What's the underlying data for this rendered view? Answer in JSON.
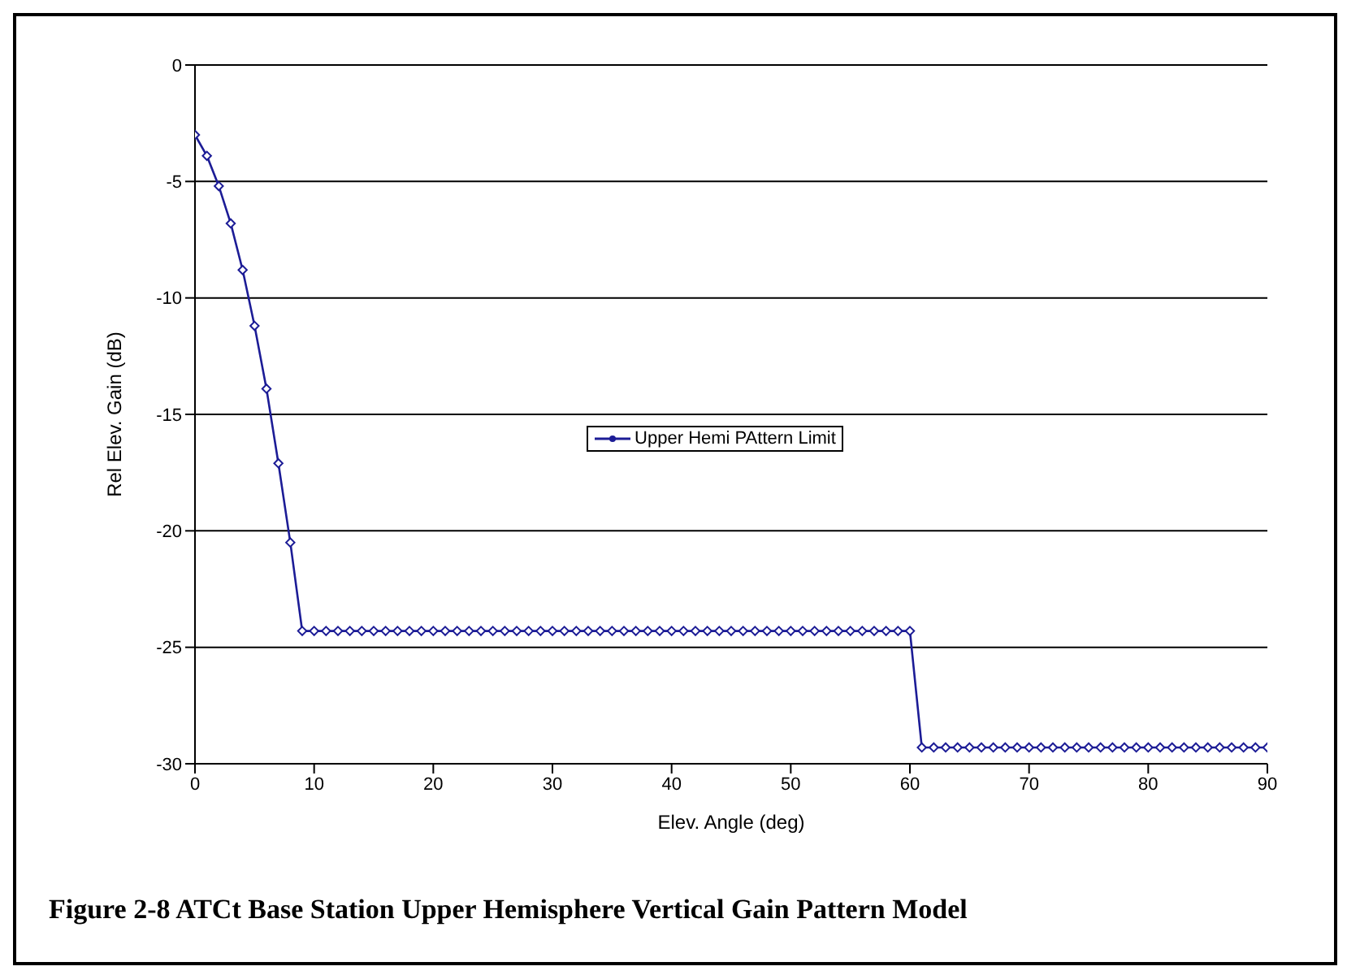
{
  "chart_data": {
    "type": "line",
    "title": "Figure 2-8 ATCt Base Station Upper Hemisphere Vertical Gain Pattern Model",
    "xlabel": "Elev. Angle (deg)",
    "ylabel": "Rel Elev. Gain (dB)",
    "x": [
      0,
      1,
      2,
      3,
      4,
      5,
      6,
      7,
      8,
      9,
      10,
      11,
      12,
      13,
      14,
      15,
      16,
      17,
      18,
      19,
      20,
      21,
      22,
      23,
      24,
      25,
      26,
      27,
      28,
      29,
      30,
      31,
      32,
      33,
      34,
      35,
      36,
      37,
      38,
      39,
      40,
      41,
      42,
      43,
      44,
      45,
      46,
      47,
      48,
      49,
      50,
      51,
      52,
      53,
      54,
      55,
      56,
      57,
      58,
      59,
      60,
      61,
      62,
      63,
      64,
      65,
      66,
      67,
      68,
      69,
      70,
      71,
      72,
      73,
      74,
      75,
      76,
      77,
      78,
      79,
      80,
      81,
      82,
      83,
      84,
      85,
      86,
      87,
      88,
      89,
      90
    ],
    "series": [
      {
        "name": "Upper Hemi PAttern Limit",
        "color": "#1c1c96",
        "values": [
          -3,
          -3.9,
          -5.2,
          -6.8,
          -8.8,
          -11.2,
          -13.9,
          -17.1,
          -20.5,
          -24.3,
          -24.3,
          -24.3,
          -24.3,
          -24.3,
          -24.3,
          -24.3,
          -24.3,
          -24.3,
          -24.3,
          -24.3,
          -24.3,
          -24.3,
          -24.3,
          -24.3,
          -24.3,
          -24.3,
          -24.3,
          -24.3,
          -24.3,
          -24.3,
          -24.3,
          -24.3,
          -24.3,
          -24.3,
          -24.3,
          -24.3,
          -24.3,
          -24.3,
          -24.3,
          -24.3,
          -24.3,
          -24.3,
          -24.3,
          -24.3,
          -24.3,
          -24.3,
          -24.3,
          -24.3,
          -24.3,
          -24.3,
          -24.3,
          -24.3,
          -24.3,
          -24.3,
          -24.3,
          -24.3,
          -24.3,
          -24.3,
          -24.3,
          -24.3,
          -24.3,
          -29.3,
          -29.3,
          -29.3,
          -29.3,
          -29.3,
          -29.3,
          -29.3,
          -29.3,
          -29.3,
          -29.3,
          -29.3,
          -29.3,
          -29.3,
          -29.3,
          -29.3,
          -29.3,
          -29.3,
          -29.3,
          -29.3,
          -29.3,
          -29.3,
          -29.3,
          -29.3,
          -29.3,
          -29.3,
          -29.3,
          -29.3,
          -29.3,
          -29.3,
          -29.3
        ]
      }
    ],
    "xlim": [
      0,
      90
    ],
    "xticks": [
      0,
      10,
      20,
      30,
      40,
      50,
      60,
      70,
      80,
      90
    ],
    "ylim": [
      -30,
      0
    ],
    "yticks": [
      -30,
      -25,
      -20,
      -15,
      -10,
      -5,
      0
    ],
    "grid": "y",
    "legend": "center",
    "marker": "diamond",
    "line_style": "solid"
  }
}
